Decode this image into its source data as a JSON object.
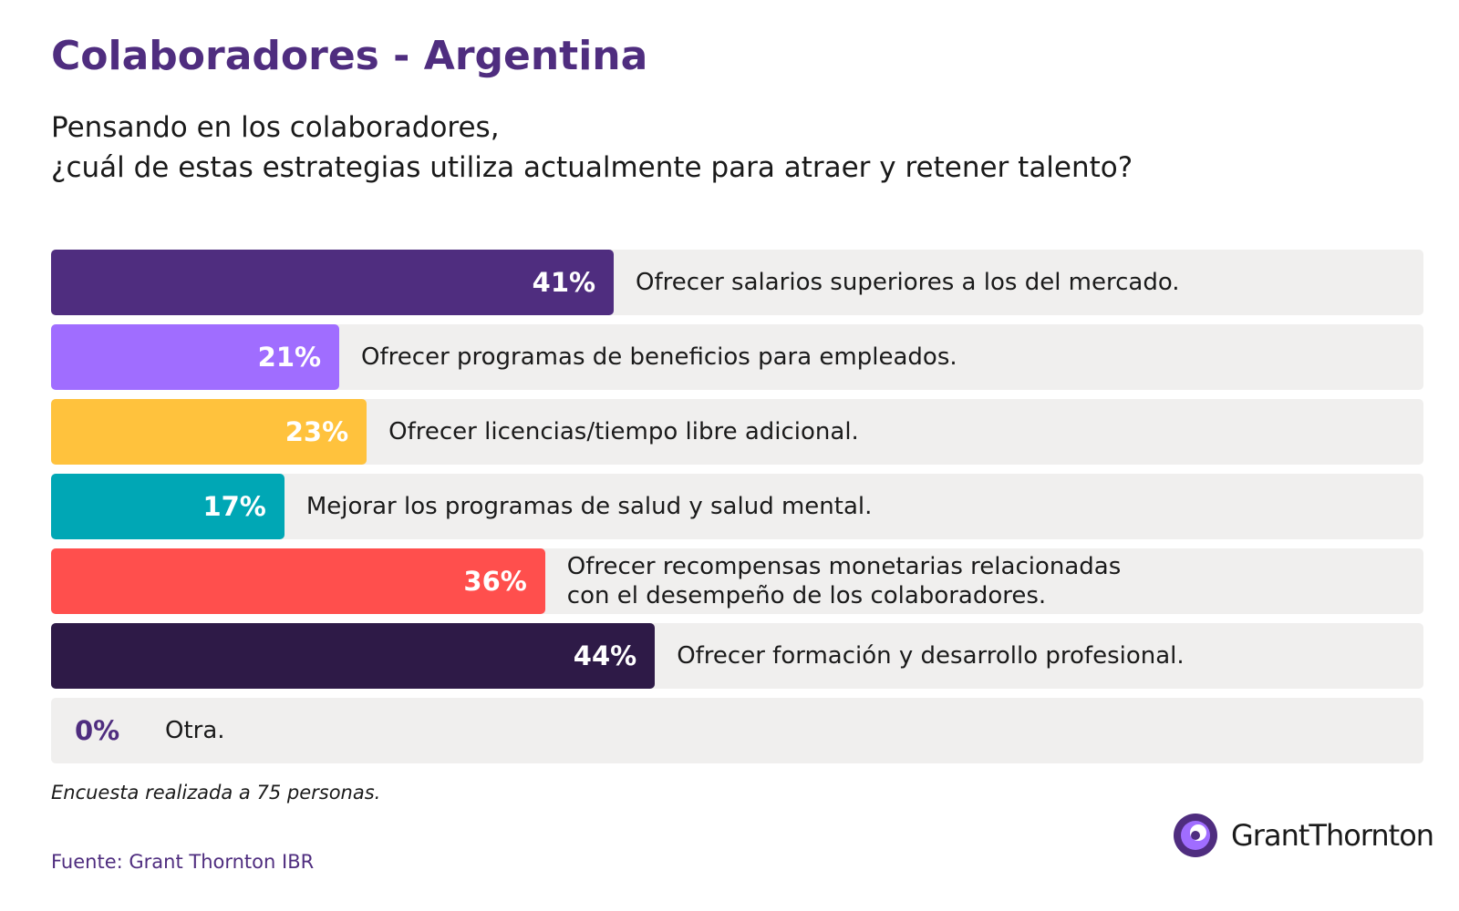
{
  "chart_data": {
    "type": "hbar",
    "title": "Colaboradores - Argentina",
    "subtitle": [
      "Pensando en los colaboradores,",
      "¿cuál de estas estrategias utiliza actualmente para atraer y retener talento?"
    ],
    "categories": [
      "Ofrecer salarios superiores a los del mercado.",
      "Ofrecer programas de beneficios para empleados.",
      "Ofrecer licencias/tiempo libre adicional.",
      "Mejorar los programas de salud y salud mental.",
      "Ofrecer recompensas monetarias relacionadas\ncon el desempeño de los colaboradores.",
      "Ofrecer formación y desarrollo profesional.",
      "Otra."
    ],
    "values": [
      41,
      21,
      23,
      17,
      36,
      44,
      0
    ],
    "value_labels": [
      "41%",
      "21%",
      "23%",
      "17%",
      "36%",
      "44%",
      "0%"
    ],
    "colors": [
      "#4f2d7f",
      "#a06dff",
      "#ffc23d",
      "#00a7b5",
      "#ff4f4d",
      "#2e1a47",
      "#4f2d7f"
    ],
    "xlim": [
      0,
      100
    ],
    "note": "Encuesta realizada a 75 personas.",
    "source": "Fuente: Grant Thornton IBR",
    "logo": "GrantThornton"
  }
}
